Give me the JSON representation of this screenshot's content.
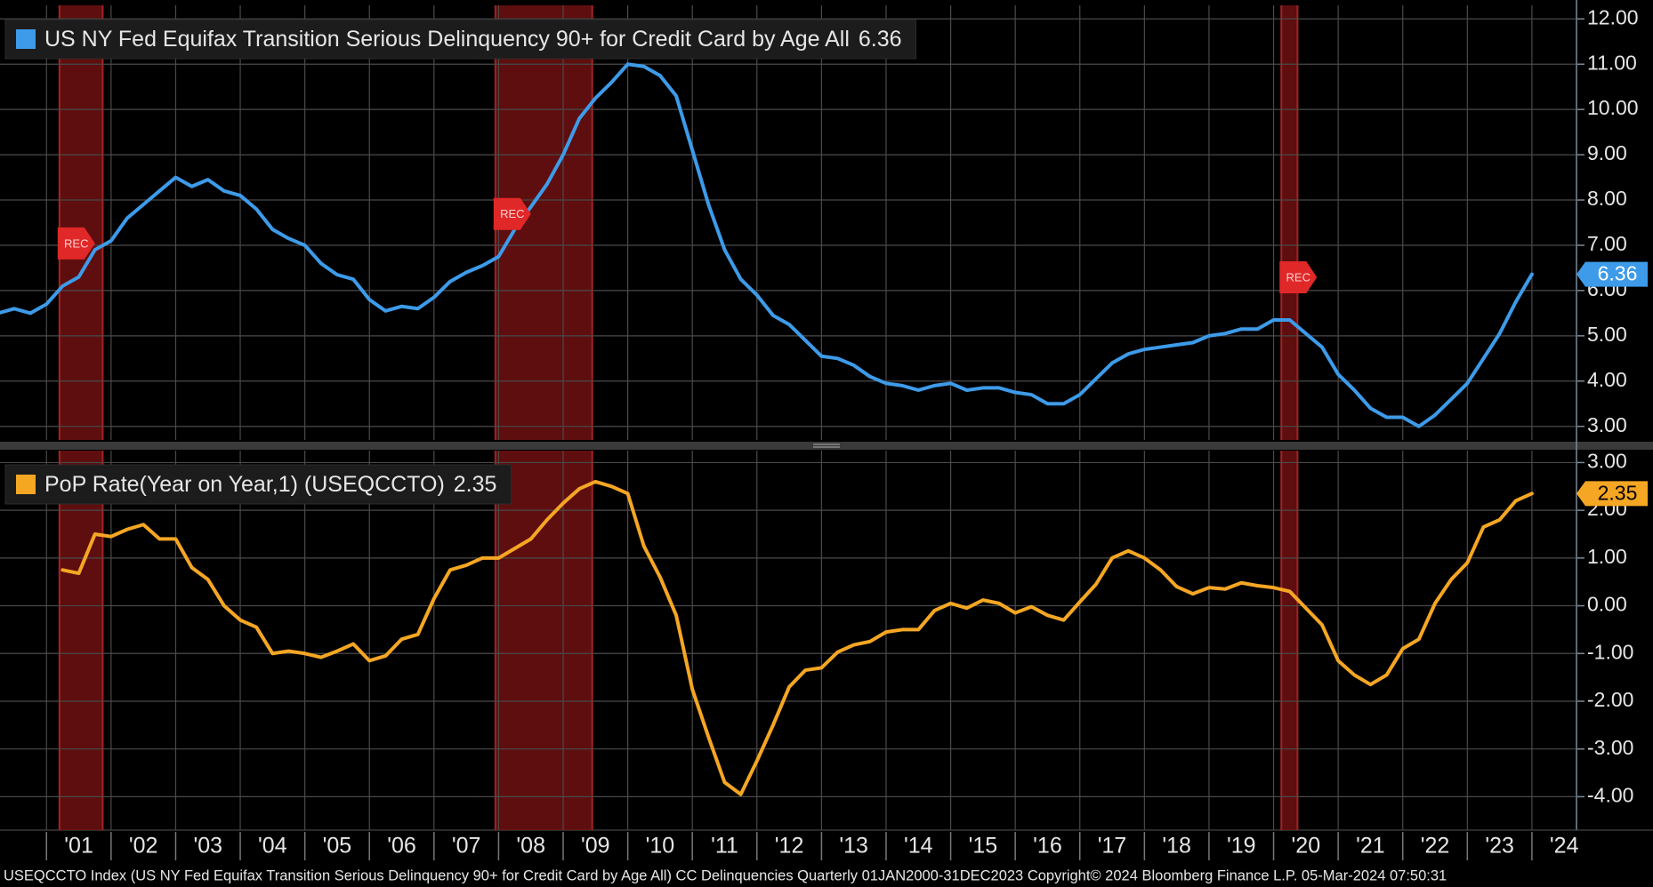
{
  "chart_data": [
    {
      "type": "line",
      "x": [
        2000.25,
        2000.5,
        2000.75,
        2001,
        2001.25,
        2001.5,
        2001.75,
        2002,
        2002.25,
        2002.5,
        2002.75,
        2003,
        2003.25,
        2003.5,
        2003.75,
        2004,
        2004.25,
        2004.5,
        2004.75,
        2005,
        2005.25,
        2005.5,
        2005.75,
        2006,
        2006.25,
        2006.5,
        2006.75,
        2007,
        2007.25,
        2007.5,
        2007.75,
        2008,
        2008.25,
        2008.5,
        2008.75,
        2009,
        2009.25,
        2009.5,
        2009.75,
        2010,
        2010.25,
        2010.5,
        2010.75,
        2011,
        2011.25,
        2011.5,
        2011.75,
        2012,
        2012.25,
        2012.5,
        2012.75,
        2013,
        2013.25,
        2013.5,
        2013.75,
        2014,
        2014.25,
        2014.5,
        2014.75,
        2015,
        2015.25,
        2015.5,
        2015.75,
        2016,
        2016.25,
        2016.5,
        2016.75,
        2017,
        2017.25,
        2017.5,
        2017.75,
        2018,
        2018.25,
        2018.5,
        2018.75,
        2019,
        2019.25,
        2019.5,
        2019.75,
        2020,
        2020.25,
        2020.5,
        2020.75,
        2021,
        2021.25,
        2021.5,
        2021.75,
        2022,
        2022.25,
        2022.5,
        2022.75,
        2023,
        2023.25,
        2023.5,
        2023.75,
        2024
      ],
      "series": [
        {
          "name": "US NY Fed Equifax Transition Serious Delinquency 90+ for Credit Card by Age All",
          "color": "#3d9be9",
          "values": [
            5.5,
            5.6,
            5.5,
            5.7,
            6.1,
            6.3,
            6.9,
            7.1,
            7.6,
            7.9,
            8.2,
            8.5,
            8.3,
            8.45,
            8.2,
            8.1,
            7.8,
            7.35,
            7.15,
            7.0,
            6.6,
            6.35,
            6.25,
            5.8,
            5.55,
            5.65,
            5.6,
            5.85,
            6.2,
            6.4,
            6.55,
            6.75,
            7.35,
            7.85,
            8.35,
            9.0,
            9.8,
            10.25,
            10.6,
            11.0,
            10.95,
            10.75,
            10.3,
            9.1,
            7.9,
            6.9,
            6.25,
            5.9,
            5.45,
            5.25,
            4.9,
            4.55,
            4.5,
            4.35,
            4.1,
            3.95,
            3.9,
            3.8,
            3.9,
            3.95,
            3.8,
            3.85,
            3.85,
            3.75,
            3.7,
            3.5,
            3.5,
            3.7,
            4.05,
            4.4,
            4.6,
            4.7,
            4.75,
            4.8,
            4.85,
            5.0,
            5.05,
            5.15,
            5.15,
            5.35,
            5.35,
            5.05,
            4.75,
            4.15,
            3.8,
            3.4,
            3.2,
            3.2,
            3.0,
            3.25,
            3.6,
            3.95,
            4.5,
            5.05,
            5.75,
            6.36
          ]
        }
      ],
      "xlim": [
        2000.28,
        2024.69
      ],
      "ylim": [
        2.7,
        12.3
      ],
      "yticks": [
        {
          "value": 3,
          "label": "3.00"
        },
        {
          "value": 4,
          "label": "4.00"
        },
        {
          "value": 5,
          "label": "5.00"
        },
        {
          "value": 6,
          "label": "6.00"
        },
        {
          "value": 7,
          "label": "7.00"
        },
        {
          "value": 8,
          "label": "8.00"
        },
        {
          "value": 9,
          "label": "9.00"
        },
        {
          "value": 10,
          "label": "10.00"
        },
        {
          "value": 11,
          "label": "11.00"
        },
        {
          "value": 12,
          "label": "12.00"
        }
      ],
      "grid": true,
      "legend": "upper left",
      "recession_shading": [
        [
          2001.2,
          2001.87
        ],
        [
          2007.95,
          2009.45
        ],
        [
          2020.12,
          2020.37
        ]
      ],
      "recession_label": "REC"
    },
    {
      "type": "line",
      "x": [
        2000.25,
        2000.5,
        2000.75,
        2001,
        2001.25,
        2001.5,
        2001.75,
        2002,
        2002.25,
        2002.5,
        2002.75,
        2003,
        2003.25,
        2003.5,
        2003.75,
        2004,
        2004.25,
        2004.5,
        2004.75,
        2005,
        2005.25,
        2005.5,
        2005.75,
        2006,
        2006.25,
        2006.5,
        2006.75,
        2007,
        2007.25,
        2007.5,
        2007.75,
        2008,
        2008.25,
        2008.5,
        2008.75,
        2009,
        2009.25,
        2009.5,
        2009.75,
        2010,
        2010.25,
        2010.5,
        2010.75,
        2011,
        2011.25,
        2011.5,
        2011.75,
        2012,
        2012.25,
        2012.5,
        2012.75,
        2013,
        2013.25,
        2013.5,
        2013.75,
        2014,
        2014.25,
        2014.5,
        2014.75,
        2015,
        2015.25,
        2015.5,
        2015.75,
        2016,
        2016.25,
        2016.5,
        2016.75,
        2017,
        2017.25,
        2017.5,
        2017.75,
        2018,
        2018.25,
        2018.5,
        2018.75,
        2019,
        2019.25,
        2019.5,
        2019.75,
        2020,
        2020.25,
        2020.5,
        2020.75,
        2021,
        2021.25,
        2021.5,
        2021.75,
        2022,
        2022.25,
        2022.5,
        2022.75,
        2023,
        2023.25,
        2023.5,
        2023.75,
        2024
      ],
      "series": [
        {
          "name": "PoP Rate(Year on Year,1) (USEQCCTO)",
          "color": "#f5a623",
          "values": [
            null,
            null,
            null,
            null,
            0.75,
            0.68,
            1.5,
            1.45,
            1.6,
            1.7,
            1.4,
            1.4,
            0.8,
            0.55,
            0.0,
            -0.3,
            -0.45,
            -1.0,
            -0.95,
            -1.0,
            -1.08,
            -0.95,
            -0.8,
            -1.15,
            -1.05,
            -0.7,
            -0.6,
            0.15,
            0.75,
            0.85,
            1.0,
            1.0,
            1.2,
            1.4,
            1.8,
            2.15,
            2.45,
            2.6,
            2.5,
            2.35,
            1.25,
            0.6,
            -0.2,
            -1.75,
            -2.75,
            -3.7,
            -3.95,
            -3.25,
            -2.5,
            -1.7,
            -1.35,
            -1.3,
            -0.97,
            -0.82,
            -0.75,
            -0.55,
            -0.5,
            -0.5,
            -0.1,
            0.05,
            -0.05,
            0.12,
            0.05,
            -0.15,
            -0.02,
            -0.2,
            -0.3,
            0.08,
            0.45,
            1.0,
            1.15,
            1.0,
            0.75,
            0.4,
            0.25,
            0.38,
            0.35,
            0.48,
            0.42,
            0.38,
            0.3,
            -0.05,
            -0.4,
            -1.15,
            -1.45,
            -1.65,
            -1.45,
            -0.9,
            -0.7,
            0.05,
            0.55,
            0.9,
            1.65,
            1.8,
            2.2,
            2.35
          ]
        }
      ],
      "xlim": [
        2000.28,
        2024.69
      ],
      "xticks": [
        {
          "value": 2001,
          "label": "'01"
        },
        {
          "value": 2002,
          "label": "'02"
        },
        {
          "value": 2003,
          "label": "'03"
        },
        {
          "value": 2004,
          "label": "'04"
        },
        {
          "value": 2005,
          "label": "'05"
        },
        {
          "value": 2006,
          "label": "'06"
        },
        {
          "value": 2007,
          "label": "'07"
        },
        {
          "value": 2008,
          "label": "'08"
        },
        {
          "value": 2009,
          "label": "'09"
        },
        {
          "value": 2010,
          "label": "'10"
        },
        {
          "value": 2011,
          "label": "'11"
        },
        {
          "value": 2012,
          "label": "'12"
        },
        {
          "value": 2013,
          "label": "'13"
        },
        {
          "value": 2014,
          "label": "'14"
        },
        {
          "value": 2015,
          "label": "'15"
        },
        {
          "value": 2016,
          "label": "'16"
        },
        {
          "value": 2017,
          "label": "'17"
        },
        {
          "value": 2018,
          "label": "'18"
        },
        {
          "value": 2019,
          "label": "'19"
        },
        {
          "value": 2020,
          "label": "'20"
        },
        {
          "value": 2021,
          "label": "'21"
        },
        {
          "value": 2022,
          "label": "'22"
        },
        {
          "value": 2023,
          "label": "'23"
        },
        {
          "value": 2024,
          "label": "'24"
        }
      ],
      "ylim": [
        -4.7,
        3.25
      ],
      "yticks": [
        {
          "value": -4,
          "label": "-4.00"
        },
        {
          "value": -3,
          "label": "-3.00"
        },
        {
          "value": -2,
          "label": "-2.00"
        },
        {
          "value": -1,
          "label": "-1.00"
        },
        {
          "value": 0,
          "label": "0.00"
        },
        {
          "value": 1,
          "label": "1.00"
        },
        {
          "value": 2,
          "label": "2.00"
        },
        {
          "value": 3,
          "label": "3.00"
        }
      ],
      "grid": true,
      "legend": "upper left"
    }
  ],
  "footer": "USEQCCTO Index (US NY Fed Equifax Transition Serious Delinquency 90+ for Credit Card by Age All) CC Delinquencies  Quarterly 01JAN2000-31DEC2023 Copyright© 2024 Bloomberg Finance L.P.  05-Mar-2024 07:50:31"
}
